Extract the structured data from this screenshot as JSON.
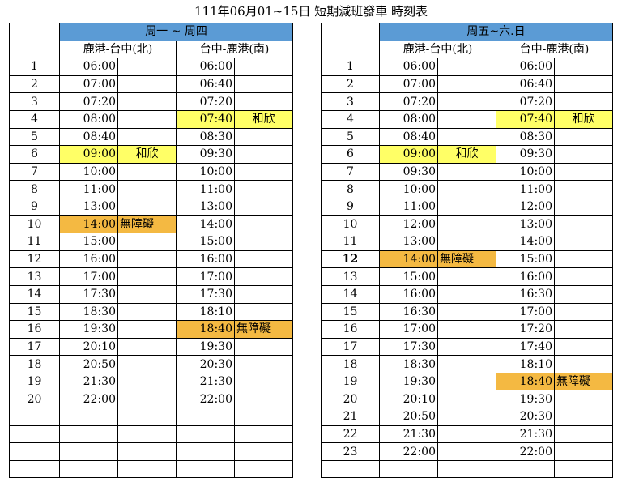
{
  "title": "111年06月01~15日 短期減班發車 時刻表",
  "colors": {
    "header_blue": "#5b9bd5",
    "highlight_yellow": "#ffff66",
    "highlight_orange": "#f4b942"
  },
  "tables": [
    {
      "id": "weekday",
      "day_label": "周一 ~ 周四",
      "col_a": "鹿港-台中(北)",
      "col_b": "台中-鹿港(南)",
      "blank_rows": 4,
      "rows": [
        {
          "no": "1",
          "a": "06:00",
          "a_note": "",
          "b": "06:00",
          "b_note": ""
        },
        {
          "no": "2",
          "a": "07:00",
          "a_note": "",
          "b": "06:40",
          "b_note": ""
        },
        {
          "no": "3",
          "a": "07:20",
          "a_note": "",
          "b": "07:20",
          "b_note": ""
        },
        {
          "no": "4",
          "a": "08:00",
          "a_note": "",
          "b": "07:40",
          "b_note": "和欣",
          "b_hl": "yellow"
        },
        {
          "no": "5",
          "a": "08:40",
          "a_note": "",
          "b": "08:30",
          "b_note": ""
        },
        {
          "no": "6",
          "a": "09:00",
          "a_note": "和欣",
          "a_hl": "yellow",
          "b": "09:30",
          "b_note": ""
        },
        {
          "no": "7",
          "a": "10:00",
          "a_note": "",
          "b": "10:00",
          "b_note": ""
        },
        {
          "no": "8",
          "a": "11:00",
          "a_note": "",
          "b": "11:00",
          "b_note": ""
        },
        {
          "no": "9",
          "a": "13:00",
          "a_note": "",
          "b": "13:00",
          "b_note": ""
        },
        {
          "no": "10",
          "a": "14:00",
          "a_note": "無障礙",
          "a_hl": "orange",
          "b": "14:00",
          "b_note": ""
        },
        {
          "no": "11",
          "a": "15:00",
          "a_note": "",
          "b": "15:00",
          "b_note": ""
        },
        {
          "no": "12",
          "a": "16:00",
          "a_note": "",
          "b": "16:00",
          "b_note": ""
        },
        {
          "no": "13",
          "a": "17:00",
          "a_note": "",
          "b": "17:00",
          "b_note": ""
        },
        {
          "no": "14",
          "a": "17:30",
          "a_note": "",
          "b": "17:30",
          "b_note": ""
        },
        {
          "no": "15",
          "a": "18:30",
          "a_note": "",
          "b": "18:10",
          "b_note": ""
        },
        {
          "no": "16",
          "a": "19:30",
          "a_note": "",
          "b": "18:40",
          "b_note": "無障礙",
          "b_hl": "orange"
        },
        {
          "no": "17",
          "a": "20:10",
          "a_note": "",
          "b": "19:30",
          "b_note": ""
        },
        {
          "no": "18",
          "a": "20:50",
          "a_note": "",
          "b": "20:30",
          "b_note": ""
        },
        {
          "no": "19",
          "a": "21:30",
          "a_note": "",
          "b": "21:30",
          "b_note": ""
        },
        {
          "no": "20",
          "a": "22:00",
          "a_note": "",
          "b": "22:00",
          "b_note": ""
        }
      ]
    },
    {
      "id": "weekend",
      "day_label": "周五~六.日",
      "col_a": "鹿港-台中(北)",
      "col_b": "台中-鹿港(南)",
      "blank_rows": 1,
      "rows": [
        {
          "no": "1",
          "a": "06:00",
          "a_note": "",
          "b": "06:00",
          "b_note": ""
        },
        {
          "no": "2",
          "a": "07:00",
          "a_note": "",
          "b": "06:40",
          "b_note": ""
        },
        {
          "no": "3",
          "a": "07:20",
          "a_note": "",
          "b": "07:20",
          "b_note": ""
        },
        {
          "no": "4",
          "a": "08:00",
          "a_note": "",
          "b": "07:40",
          "b_note": "和欣",
          "b_hl": "yellow"
        },
        {
          "no": "5",
          "a": "08:40",
          "a_note": "",
          "b": "08:30",
          "b_note": ""
        },
        {
          "no": "6",
          "a": "09:00",
          "a_note": "和欣",
          "a_hl": "yellow",
          "b": "09:30",
          "b_note": ""
        },
        {
          "no": "7",
          "a": "09:30",
          "a_note": "",
          "b": "10:00",
          "b_note": ""
        },
        {
          "no": "8",
          "a": "10:00",
          "a_note": "",
          "b": "11:00",
          "b_note": ""
        },
        {
          "no": "9",
          "a": "11:00",
          "a_note": "",
          "b": "12:00",
          "b_note": ""
        },
        {
          "no": "10",
          "a": "12:00",
          "a_note": "",
          "b": "13:00",
          "b_note": ""
        },
        {
          "no": "11",
          "a": "13:00",
          "a_note": "",
          "b": "14:00",
          "b_note": ""
        },
        {
          "no": "12",
          "a": "14:00",
          "a_note": "無障礙",
          "a_hl": "orange",
          "b": "15:00",
          "b_note": "",
          "bold_no": true
        },
        {
          "no": "13",
          "a": "15:00",
          "a_note": "",
          "b": "16:00",
          "b_note": ""
        },
        {
          "no": "14",
          "a": "16:00",
          "a_note": "",
          "b": "16:30",
          "b_note": ""
        },
        {
          "no": "15",
          "a": "16:30",
          "a_note": "",
          "b": "17:00",
          "b_note": ""
        },
        {
          "no": "16",
          "a": "17:00",
          "a_note": "",
          "b": "17:20",
          "b_note": ""
        },
        {
          "no": "17",
          "a": "17:30",
          "a_note": "",
          "b": "17:40",
          "b_note": ""
        },
        {
          "no": "18",
          "a": "18:30",
          "a_note": "",
          "b": "18:10",
          "b_note": ""
        },
        {
          "no": "19",
          "a": "19:30",
          "a_note": "",
          "b": "18:40",
          "b_note": "無障礙",
          "b_hl": "orange"
        },
        {
          "no": "20",
          "a": "20:10",
          "a_note": "",
          "b": "19:30",
          "b_note": ""
        },
        {
          "no": "21",
          "a": "20:50",
          "a_note": "",
          "b": "20:30",
          "b_note": ""
        },
        {
          "no": "22",
          "a": "21:30",
          "a_note": "",
          "b": "21:30",
          "b_note": ""
        },
        {
          "no": "23",
          "a": "22:00",
          "a_note": "",
          "b": "22:00",
          "b_note": ""
        }
      ]
    }
  ]
}
